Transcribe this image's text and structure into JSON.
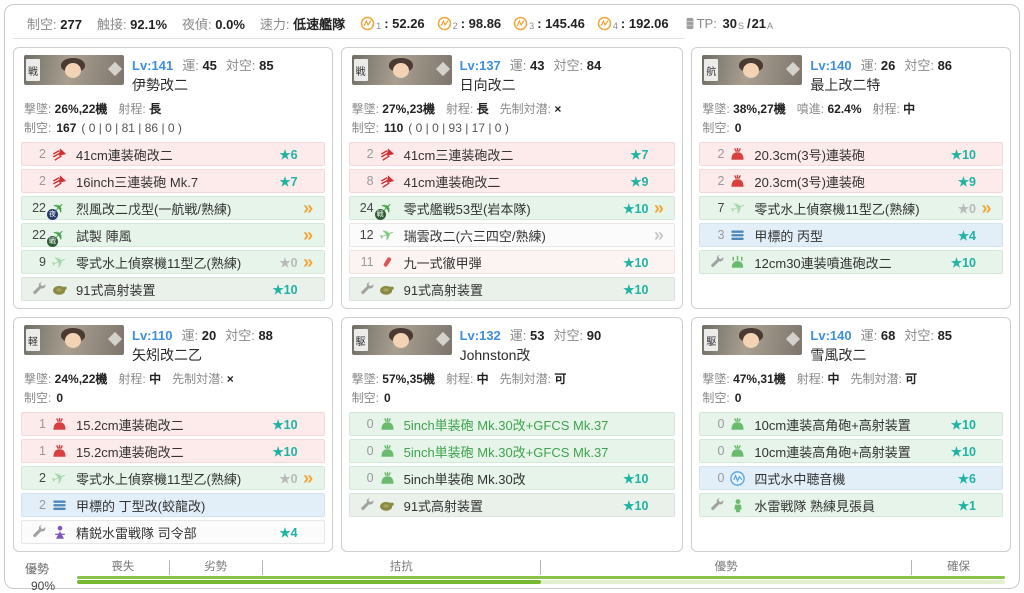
{
  "colors": {
    "accent_teal": "#1fb3a3",
    "accent_orange": "#f0a63a",
    "level_blue": "#3d8fe0",
    "gauge_green": "#76b82f"
  },
  "labels": {
    "luck": "運:",
    "aa": "対空:",
    "air": "制空:"
  },
  "header": {
    "stats": [
      [
        "制空:",
        "277"
      ],
      [
        "触接:",
        "92.1%"
      ],
      [
        "夜偵:",
        "0.0%"
      ],
      [
        "速力:",
        "低速艦隊"
      ]
    ],
    "aa_values": [
      {
        "sub": "1",
        "value": "52.26"
      },
      {
        "sub": "2",
        "value": "98.86"
      },
      {
        "sub": "3",
        "value": "145.46"
      },
      {
        "sub": "4",
        "value": "192.06"
      }
    ],
    "tp": {
      "label": "TP:",
      "s": "30",
      "s_sub": "S",
      "sep": "/",
      "a": "21",
      "a_sub": "A"
    }
  },
  "ships": [
    {
      "type_tag": "戦",
      "level": "Lv:141",
      "luck": "45",
      "aa": "85",
      "name": "伊勢改二",
      "stats": [
        [
          "撃墜:",
          "26%,22機"
        ],
        [
          "射程:",
          "長"
        ]
      ],
      "air": "167",
      "air_detail": "( 0 | 0 | 81 | 86 | 0 )",
      "slots": [
        {
          "count": "2",
          "muted": true,
          "icon": "large-gun-icon",
          "name": "41cm連装砲改二",
          "stars": "★6",
          "row": "pink"
        },
        {
          "count": "2",
          "muted": true,
          "icon": "large-gun-icon",
          "name": "16inch三連装砲 Mk.7",
          "stars": "★7",
          "row": "pink"
        },
        {
          "count": "22",
          "icon": "night-fighter-icon",
          "name": "烈風改二戊型(一航戦/熟練)",
          "prof": "orange",
          "row": "green"
        },
        {
          "count": "22",
          "icon": "fighter-icon",
          "name": "試製 陣風",
          "prof": "orange",
          "row": "green"
        },
        {
          "count": "9",
          "icon": "seaplane-icon",
          "name": "零式水上偵察機11型乙(熟練)",
          "stars": "★0",
          "stars_gray": true,
          "prof": "orange",
          "row": "green"
        },
        {
          "expansion": true,
          "icon": "aa-director-icon",
          "name": "91式高射装置",
          "stars": "★10",
          "row": "graygreen"
        }
      ]
    },
    {
      "type_tag": "戦",
      "level": "Lv:137",
      "luck": "43",
      "aa": "84",
      "name": "日向改二",
      "stats": [
        [
          "撃墜:",
          "27%,23機"
        ],
        [
          "射程:",
          "長"
        ],
        [
          "先制対潜:",
          "×"
        ]
      ],
      "air": "110",
      "air_detail": "( 0 | 0 | 93 | 17 | 0 )",
      "slots": [
        {
          "count": "2",
          "muted": true,
          "icon": "large-gun-icon",
          "name": "41cm三連装砲改二",
          "stars": "★7",
          "row": "pink"
        },
        {
          "count": "8",
          "muted": true,
          "icon": "large-gun-icon",
          "name": "41cm連装砲改二",
          "stars": "★9",
          "row": "pink"
        },
        {
          "count": "24",
          "icon": "fighter-icon",
          "name": "零式艦戦53型(岩本隊)",
          "stars": "★10",
          "prof": "orange",
          "row": "green"
        },
        {
          "count": "12",
          "icon": "seaplane-bomber-icon",
          "name": "瑞雲改二(六三四空/熟練)",
          "prof": "gray",
          "row": "white"
        },
        {
          "count": "11",
          "muted": true,
          "icon": "ap-shell-icon",
          "name": "九一式徹甲弾",
          "stars": "★10",
          "row": "palepink"
        },
        {
          "expansion": true,
          "icon": "aa-director-icon",
          "name": "91式高射装置",
          "stars": "★10",
          "row": "graygreen"
        }
      ]
    },
    {
      "type_tag": "航",
      "level": "Lv:140",
      "luck": "26",
      "aa": "86",
      "name": "最上改二特",
      "stats": [
        [
          "撃墜:",
          "38%,27機"
        ],
        [
          "噴進:",
          "62.4%"
        ],
        [
          "射程:",
          "中"
        ]
      ],
      "air": "0",
      "air_detail": "",
      "slots": [
        {
          "count": "2",
          "muted": true,
          "icon": "medium-gun-icon",
          "name": "20.3cm(3号)連装砲",
          "stars": "★10",
          "row": "pink"
        },
        {
          "count": "2",
          "muted": true,
          "icon": "medium-gun-icon",
          "name": "20.3cm(3号)連装砲",
          "stars": "★9",
          "row": "pink"
        },
        {
          "count": "7",
          "icon": "seaplane-icon",
          "name": "零式水上偵察機11型乙(熟練)",
          "stars": "★0",
          "stars_gray": true,
          "prof": "orange",
          "row": "green"
        },
        {
          "count": "3",
          "muted": true,
          "icon": "midget-sub-icon",
          "name": "甲標的 丙型",
          "stars": "★4",
          "row": "blue"
        },
        {
          "expansion": true,
          "icon": "rocket-launcher-icon",
          "name": "12cm30連装噴進砲改二",
          "stars": "★10",
          "row": "green"
        }
      ]
    },
    {
      "type_tag": "軽",
      "level": "Lv:110",
      "luck": "20",
      "aa": "88",
      "name": "矢矧改二乙",
      "stats": [
        [
          "撃墜:",
          "24%,22機"
        ],
        [
          "射程:",
          "中"
        ],
        [
          "先制対潜:",
          "×"
        ]
      ],
      "air": "0",
      "air_detail": "",
      "slots": [
        {
          "count": "1",
          "muted": true,
          "icon": "medium-gun-icon",
          "name": "15.2cm連装砲改二",
          "stars": "★10",
          "row": "pink"
        },
        {
          "count": "1",
          "muted": true,
          "icon": "medium-gun-icon",
          "name": "15.2cm連装砲改二",
          "stars": "★10",
          "row": "pink"
        },
        {
          "count": "2",
          "icon": "seaplane-icon",
          "name": "零式水上偵察機11型乙(熟練)",
          "stars": "★0",
          "stars_gray": true,
          "prof": "orange",
          "row": "green"
        },
        {
          "count": "2",
          "muted": true,
          "icon": "midget-sub-icon",
          "name": "甲標的 丁型改(蛟龍改)",
          "row": "blue"
        },
        {
          "expansion": true,
          "icon": "commander-icon",
          "name": "精鋭水雷戦隊 司令部",
          "stars": "★4",
          "row": "white"
        }
      ]
    },
    {
      "type_tag": "駆",
      "level": "Lv:132",
      "luck": "53",
      "aa": "90",
      "name": "Johnston改",
      "stats": [
        [
          "撃墜:",
          "57%,35機"
        ],
        [
          "射程:",
          "中"
        ],
        [
          "先制対潜:",
          "可"
        ]
      ],
      "air": "0",
      "air_detail": "",
      "slots": [
        {
          "count": "0",
          "muted": true,
          "icon": "small-gun-icon",
          "name": "5inch単装砲 Mk.30改+GFCS Mk.37",
          "name_green": true,
          "row": "green"
        },
        {
          "count": "0",
          "muted": true,
          "icon": "small-gun-icon",
          "name": "5inch単装砲 Mk.30改+GFCS Mk.37",
          "name_green": true,
          "row": "green"
        },
        {
          "count": "0",
          "muted": true,
          "icon": "small-gun-icon",
          "name": "5inch単装砲 Mk.30改",
          "stars": "★10",
          "row": "green"
        },
        {
          "expansion": true,
          "icon": "aa-director-icon",
          "name": "91式高射装置",
          "stars": "★10",
          "row": "graygreen"
        }
      ]
    },
    {
      "type_tag": "駆",
      "level": "Lv:140",
      "luck": "68",
      "aa": "85",
      "name": "雪風改二",
      "stats": [
        [
          "撃墜:",
          "47%,31機"
        ],
        [
          "射程:",
          "中"
        ],
        [
          "先制対潜:",
          "可"
        ]
      ],
      "air": "0",
      "air_detail": "",
      "slots": [
        {
          "count": "0",
          "muted": true,
          "icon": "ha-gun-icon",
          "name": "10cm連装高角砲+高射装置",
          "stars": "★10",
          "row": "green"
        },
        {
          "count": "0",
          "muted": true,
          "icon": "ha-gun-icon",
          "name": "10cm連装高角砲+高射装置",
          "stars": "★10",
          "row": "green"
        },
        {
          "count": "0",
          "muted": true,
          "icon": "sonar-icon",
          "name": "四式水中聴音機",
          "stars": "★6",
          "row": "blue"
        },
        {
          "expansion": true,
          "icon": "lookout-icon",
          "name": "水雷戦隊 熟練見張員",
          "stars": "★1",
          "row": "green"
        }
      ]
    }
  ],
  "gauge": {
    "state": "優勢",
    "percent": "90%",
    "fill_percent": 50,
    "zones": [
      {
        "label": "喪失",
        "width": 10,
        "tick": true
      },
      {
        "label": "劣勢",
        "width": 10,
        "tick": true
      },
      {
        "label": "拮抗",
        "width": 30,
        "tick": true
      },
      {
        "label": "優勢",
        "width": 40,
        "tick": true
      },
      {
        "label": "確保",
        "width": 10,
        "tick": false
      }
    ]
  }
}
